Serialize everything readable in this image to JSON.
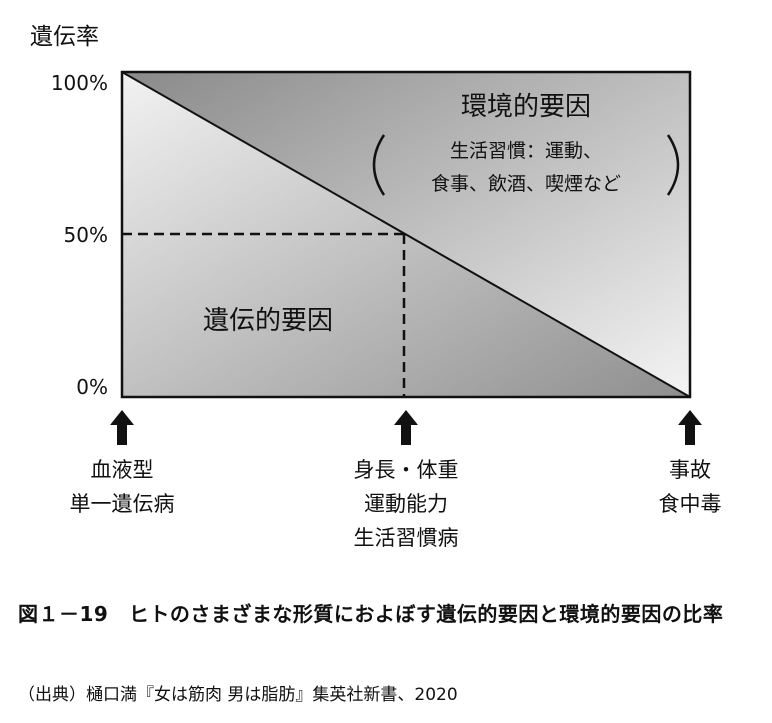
{
  "chart_data": {
    "type": "area",
    "ylabel": "遺伝率",
    "y_ticks": [
      "100%",
      "50%",
      "0%"
    ],
    "ylim": [
      0,
      100
    ],
    "x": [
      0,
      50,
      100
    ],
    "series": [
      {
        "name": "遺伝的要因",
        "values": [
          100,
          50,
          0
        ]
      },
      {
        "name": "環境的要因",
        "values": [
          0,
          50,
          100
        ]
      }
    ],
    "reference": {
      "x": 50,
      "y": 50,
      "style": "dashed"
    },
    "regions": {
      "environment": {
        "title": "環境的要因",
        "detail_line1": "生活習慣：運動、",
        "detail_line2": "食事、飲酒、喫煙など"
      },
      "genetic": {
        "title": "遺伝的要因"
      }
    },
    "x_annotations": [
      {
        "x": 0,
        "lines": [
          "血液型",
          "単一遺伝病"
        ]
      },
      {
        "x": 50,
        "lines": [
          "身長・体重",
          "運動能力",
          "生活習慣病"
        ]
      },
      {
        "x": 100,
        "lines": [
          "事故",
          "食中毒"
        ]
      }
    ],
    "colors": {
      "fill_dark": "#8f8f8f",
      "fill_light": "#f2f2f2",
      "frame": "#111111"
    }
  },
  "caption": {
    "title": "図１－19　ヒトのさまざまな形質におよぼす遺伝的要因と環境的要因の比率",
    "source": "（出典）樋口満『女は筋肉 男は脂肪』集英社新書、2020"
  }
}
